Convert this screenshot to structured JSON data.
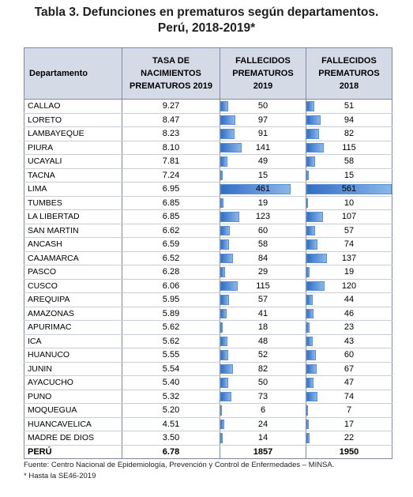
{
  "title_line1": "Tabla 3. Defunciones en prematuros según departamentos.",
  "title_line2": "Perú, 2018-2019*",
  "headers": {
    "departamento": "Departamento",
    "tasa": [
      "TASA DE",
      "NACIMIENTOS",
      "PREMATUROS 2019"
    ],
    "fall2019": [
      "FALLECIDOS",
      "PREMATUROS",
      "2019"
    ],
    "fall2018": [
      "FALLECIDOS",
      "PREMATUROS",
      "2018"
    ]
  },
  "rows": [
    {
      "dep": "CALLAO",
      "tasa": "9.27",
      "f2019": "50",
      "f2018": "51"
    },
    {
      "dep": "LORETO",
      "tasa": "8.47",
      "f2019": "97",
      "f2018": "94"
    },
    {
      "dep": "LAMBAYEQUE",
      "tasa": "8.23",
      "f2019": "91",
      "f2018": "82"
    },
    {
      "dep": "PIURA",
      "tasa": "8.10",
      "f2019": "141",
      "f2018": "115"
    },
    {
      "dep": "UCAYALI",
      "tasa": "7.81",
      "f2019": "49",
      "f2018": "58"
    },
    {
      "dep": "TACNA",
      "tasa": "7.24",
      "f2019": "15",
      "f2018": "15"
    },
    {
      "dep": "LIMA",
      "tasa": "6.95",
      "f2019": "461",
      "f2018": "561"
    },
    {
      "dep": "TUMBES",
      "tasa": "6.85",
      "f2019": "19",
      "f2018": "10"
    },
    {
      "dep": "LA LIBERTAD",
      "tasa": "6.85",
      "f2019": "123",
      "f2018": "107"
    },
    {
      "dep": "SAN MARTIN",
      "tasa": "6.62",
      "f2019": "60",
      "f2018": "57"
    },
    {
      "dep": "ANCASH",
      "tasa": "6.59",
      "f2019": "58",
      "f2018": "74"
    },
    {
      "dep": "CAJAMARCA",
      "tasa": "6.52",
      "f2019": "84",
      "f2018": "137"
    },
    {
      "dep": "PASCO",
      "tasa": "6.28",
      "f2019": "29",
      "f2018": "19"
    },
    {
      "dep": "CUSCO",
      "tasa": "6.06",
      "f2019": "115",
      "f2018": "120"
    },
    {
      "dep": "AREQUIPA",
      "tasa": "5.95",
      "f2019": "57",
      "f2018": "44"
    },
    {
      "dep": "AMAZONAS",
      "tasa": "5.89",
      "f2019": "41",
      "f2018": "46"
    },
    {
      "dep": "APURIMAC",
      "tasa": "5.62",
      "f2019": "18",
      "f2018": "23"
    },
    {
      "dep": "ICA",
      "tasa": "5.62",
      "f2019": "48",
      "f2018": "43"
    },
    {
      "dep": "HUANUCO",
      "tasa": "5.55",
      "f2019": "52",
      "f2018": "60"
    },
    {
      "dep": "JUNIN",
      "tasa": "5.54",
      "f2019": "82",
      "f2018": "67"
    },
    {
      "dep": "AYACUCHO",
      "tasa": "5.40",
      "f2019": "50",
      "f2018": "47"
    },
    {
      "dep": "PUNO",
      "tasa": "5.32",
      "f2019": "73",
      "f2018": "74"
    },
    {
      "dep": "MOQUEGUA",
      "tasa": "5.20",
      "f2019": "6",
      "f2018": "7"
    },
    {
      "dep": "HUANCAVELICA",
      "tasa": "4.51",
      "f2019": "24",
      "f2018": "17"
    },
    {
      "dep": "MADRE DE DIOS",
      "tasa": "3.50",
      "f2019": "14",
      "f2018": "22"
    }
  ],
  "total": {
    "dep": "PERÚ",
    "tasa": "6.78",
    "f2019": "1857",
    "f2018": "1950"
  },
  "source": "Fuente: Centro Nacional de Epidemiología, Prevención y Control de Enfermedades – MINSA.",
  "footnote": "* Hasta la SE46-2019",
  "colors": {
    "header_bg": "#d5dbe6",
    "bar": "#2f6fc6",
    "border": "#7e8aa0"
  }
}
